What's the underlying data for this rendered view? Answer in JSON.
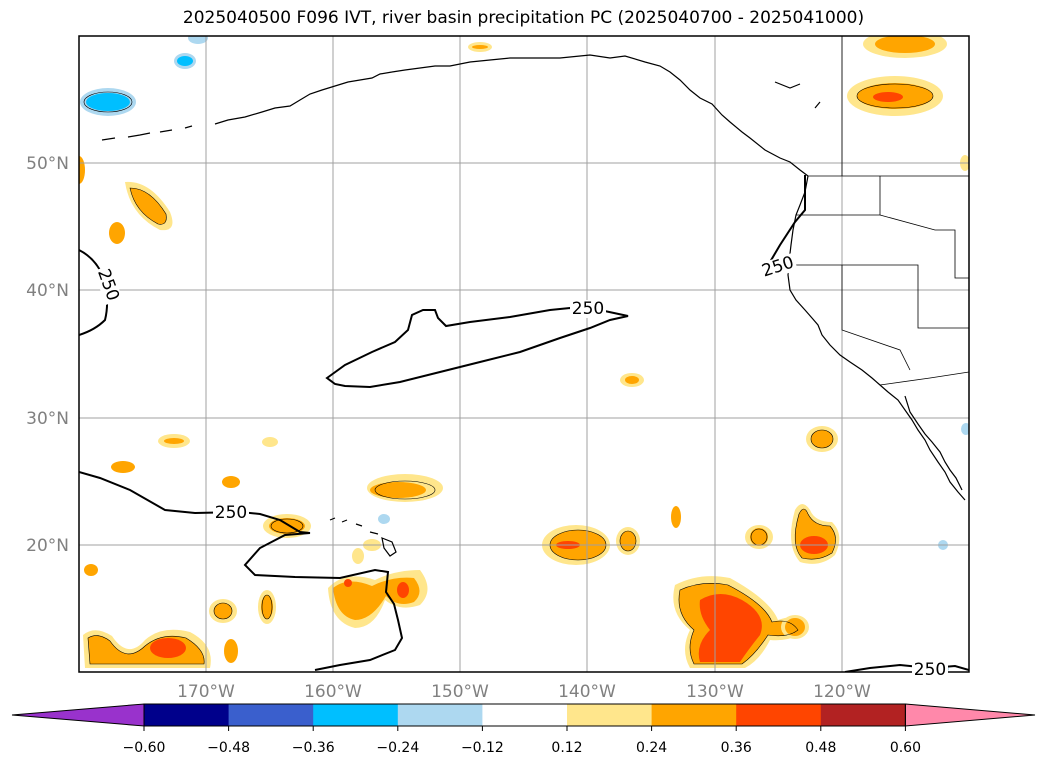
{
  "title": "2025040500 F096 IVT, river basin precipitation PC (2025040700 - 2025041000)",
  "map": {
    "lon_range": [
      -180,
      -110
    ],
    "lat_range": [
      10,
      60
    ],
    "lon_ticks": [
      "170°W",
      "160°W",
      "150°W",
      "140°W",
      "130°W",
      "120°W"
    ],
    "lat_ticks": [
      "50°N",
      "40°N",
      "30°N",
      "20°N"
    ],
    "ivt_contour_label": "250",
    "grid": true
  },
  "colorbar": {
    "ticks": [
      "−0.60",
      "−0.48",
      "−0.36",
      "−0.24",
      "−0.12",
      "0.12",
      "0.24",
      "0.36",
      "0.48",
      "0.60"
    ],
    "colors": [
      "#9932cc",
      "#00008b",
      "#3a5fcd",
      "#00bfff",
      "#add8f0",
      "#ffffff",
      "#ffe68c",
      "#ffa500",
      "#ff4500",
      "#b22222",
      "#ff88aa"
    ]
  }
}
